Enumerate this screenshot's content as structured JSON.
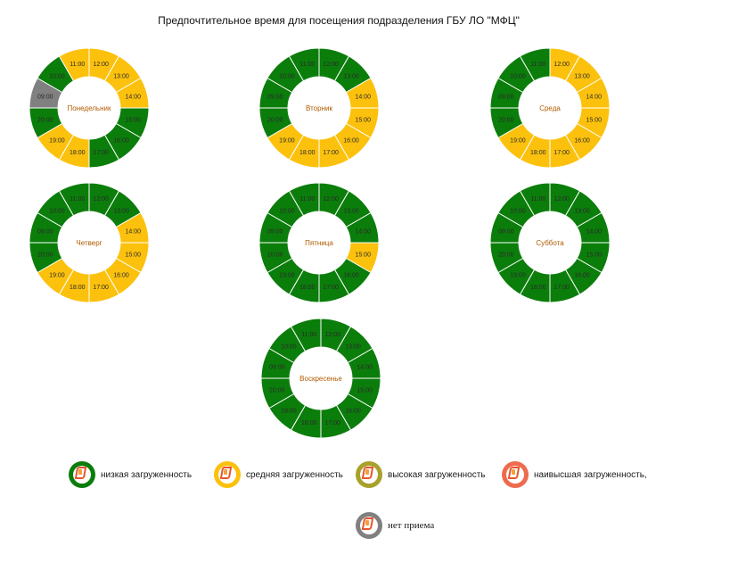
{
  "title": "Предпочтительное время для посещения подразделения ГБУ ЛО \"МФЦ\"",
  "colors": {
    "low": "#0b7d0b",
    "medium": "#fcc10d",
    "high": "#a8a12a",
    "highest": "#ee6b4e",
    "closed": "#808080"
  },
  "hours": [
    "12:00",
    "13:00",
    "14:00",
    "15:00",
    "16:00",
    "17:00",
    "18:00",
    "19:00",
    "20:00",
    "09:00",
    "10:00",
    "11:00"
  ],
  "days": [
    {
      "name": "Понедельник",
      "status": [
        "medium",
        "medium",
        "medium",
        "low",
        "low",
        "low",
        "medium",
        "medium",
        "low",
        "closed",
        "low",
        "medium"
      ]
    },
    {
      "name": "Вторник",
      "status": [
        "low",
        "low",
        "medium",
        "medium",
        "medium",
        "medium",
        "medium",
        "medium",
        "low",
        "low",
        "low",
        "low"
      ]
    },
    {
      "name": "Среда",
      "status": [
        "medium",
        "medium",
        "medium",
        "medium",
        "medium",
        "medium",
        "medium",
        "medium",
        "low",
        "low",
        "low",
        "low"
      ]
    },
    {
      "name": "Четверг",
      "status": [
        "low",
        "low",
        "medium",
        "medium",
        "medium",
        "medium",
        "medium",
        "medium",
        "low",
        "low",
        "low",
        "low"
      ]
    },
    {
      "name": "Пятница",
      "status": [
        "low",
        "low",
        "low",
        "medium",
        "low",
        "low",
        "low",
        "low",
        "low",
        "low",
        "low",
        "low"
      ]
    },
    {
      "name": "Суббота",
      "status": [
        "low",
        "low",
        "low",
        "low",
        "low",
        "low",
        "low",
        "low",
        "low",
        "low",
        "low",
        "low"
      ]
    },
    {
      "name": "Воскресенье",
      "status": [
        "low",
        "low",
        "low",
        "low",
        "low",
        "low",
        "low",
        "low",
        "low",
        "low",
        "low",
        "low"
      ]
    }
  ],
  "legend": [
    {
      "key": "low",
      "label": "низкая загруженность"
    },
    {
      "key": "medium",
      "label": "средняя загруженность"
    },
    {
      "key": "high",
      "label": "высокая загруженность"
    },
    {
      "key": "highest",
      "label": "наивысшая загруженность,"
    },
    {
      "key": "closed",
      "label": "нет приема"
    }
  ]
}
